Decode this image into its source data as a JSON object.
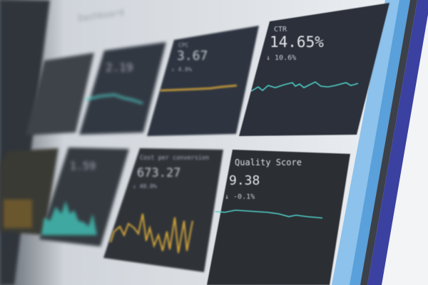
{
  "colors": {
    "panel": "#2b3038",
    "screen_bg": "#e4e8ec",
    "teal": "#4fd0c8",
    "gold": "#d8a83a",
    "bezel_light_blue": "#7fb8e6",
    "bezel_dark_blue": "#3a3f9a"
  },
  "header": {
    "title": "Dashboard"
  },
  "cards": [
    {
      "label": "",
      "value": "",
      "delta": ""
    },
    {
      "label": "",
      "value": "2.19",
      "delta": ""
    },
    {
      "label": "CPC",
      "value": "3.67",
      "delta": "↓ 4.0%"
    },
    {
      "label": "CTR",
      "value": "14.65%",
      "delta": "↓ 10.6%"
    },
    {
      "label": "",
      "value": "",
      "delta": ""
    },
    {
      "label": "",
      "value": "1.59",
      "delta": ""
    },
    {
      "label": "Cost per conversion",
      "value": "673.27",
      "delta": "↓ 40.0%"
    },
    {
      "label": "Quality Score",
      "value": "9.38",
      "delta": "↓ -0.1%"
    }
  ]
}
